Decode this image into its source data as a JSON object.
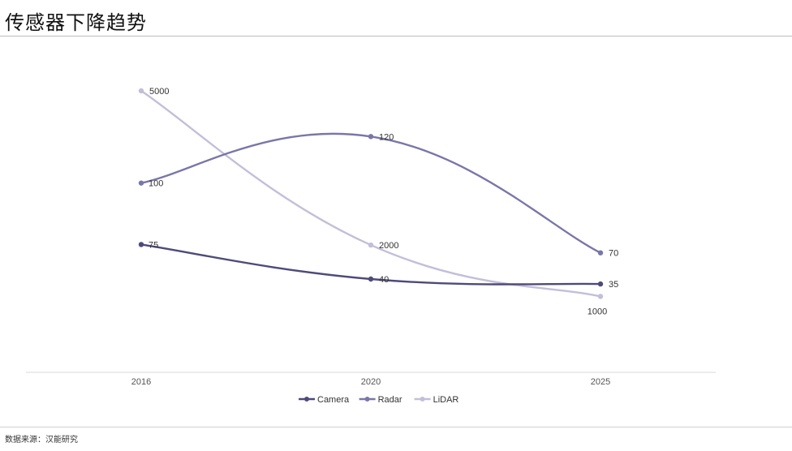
{
  "title": "传感器下降趋势",
  "source": "数据来源：汉能研究",
  "chart_data": {
    "type": "line",
    "categories": [
      "2016",
      "2020",
      "2025"
    ],
    "series": [
      {
        "name": "Camera",
        "values": [
          75,
          40,
          35
        ],
        "color": "#4e4a7a"
      },
      {
        "name": "Radar",
        "values": [
          100,
          120,
          70
        ],
        "color": "#7a76a8"
      },
      {
        "name": "LiDAR",
        "values": [
          5000,
          2000,
          1000
        ],
        "color": "#c2bfd9"
      }
    ],
    "smooth": true,
    "data_labels": true,
    "legend": "bottom",
    "grid": false,
    "yaxis_visible": false
  }
}
